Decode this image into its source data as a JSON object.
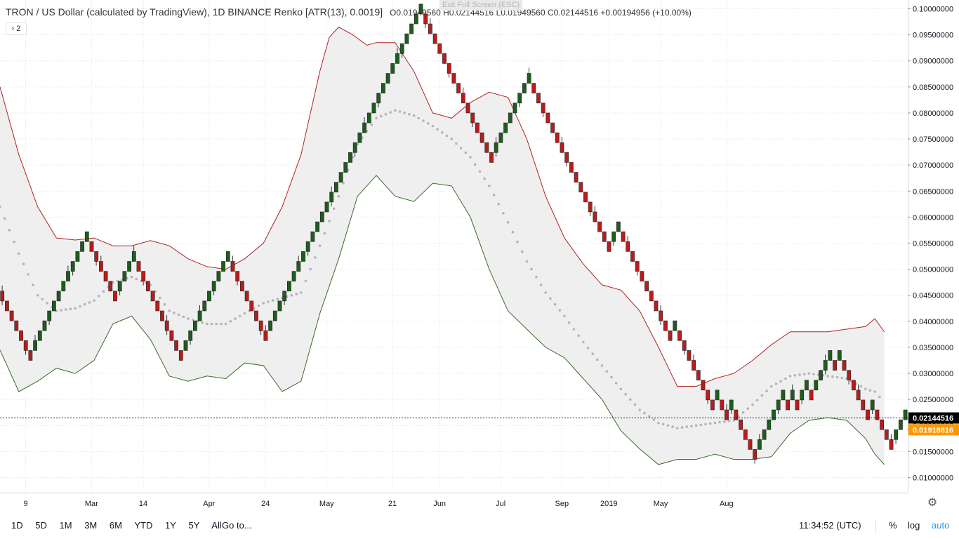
{
  "header": {
    "title": "TRON / US Dollar (calculated by TradingView)",
    "interval": "1D",
    "exchange": "BINANCE",
    "chart_style": "Renko [ATR(13), 0.0019]",
    "open_label": "O",
    "open": "0.01949560",
    "high_label": "H",
    "high": "0.02144516",
    "low_label": "L",
    "low": "0.01949560",
    "close_label": "C",
    "close": "0.02144516",
    "change": "+0.00194956 (+10.00%)"
  },
  "collapse_label": "› 2",
  "exit_fullscreen": "Exit Full Screen (ESC)",
  "colors": {
    "up_brick": "#1e5c1e",
    "down_brick": "#b71c1c",
    "upper_band": "#b22222",
    "lower_band": "#3a6b2a",
    "basis": "#b4b4bc",
    "band_fill": "#ececec",
    "last_price_bg": "#000000",
    "second_price_bg": "#ff9800"
  },
  "price_labels": {
    "last": "0.02144516",
    "second": "0.01918816"
  },
  "bottom_bar": {
    "ranges": [
      "1D",
      "5D",
      "1M",
      "3M",
      "6M",
      "YTD",
      "1Y",
      "5Y",
      "All"
    ],
    "goto": "Go to...",
    "clock": "11:34:52 (UTC)",
    "percent": "%",
    "log": "log",
    "auto": "auto"
  },
  "settings_icon": "gear-icon",
  "chart_data": {
    "type": "renko",
    "brick_size": 0.0019,
    "y_axis": {
      "min": 0.006,
      "max": 0.101,
      "ticks": [
        0.1,
        0.095,
        0.09,
        0.085,
        0.08,
        0.075,
        0.07,
        0.065,
        0.06,
        0.055,
        0.05,
        0.045,
        0.04,
        0.035,
        0.03,
        0.025,
        0.02,
        0.015,
        0.01
      ],
      "tick_labels": [
        "0.10000000",
        "0.09500000",
        "0.09000000",
        "0.08500000",
        "0.08000000",
        "0.07500000",
        "0.07000000",
        "0.06500000",
        "0.06000000",
        "0.05500000",
        "0.05000000",
        "0.04500000",
        "0.04000000",
        "0.03500000",
        "0.03000000",
        "0.02500000",
        "0.02000000",
        "0.01500000",
        "0.01000000"
      ]
    },
    "x_axis": {
      "tick_labels": [
        "9",
        "Mar",
        "14",
        "Apr",
        "24",
        "May",
        "21",
        "Jun",
        "Jul",
        "Sep",
        "2019",
        "May",
        "Aug"
      ],
      "tick_bricks": [
        5,
        19,
        30,
        44,
        56,
        69,
        83,
        93,
        106,
        119,
        129,
        140,
        154
      ]
    },
    "bricks_start": 0.0458,
    "brick_moves": [
      -1,
      -1,
      -1,
      -1,
      -1,
      -1,
      -1,
      1,
      1,
      1,
      1,
      1,
      1,
      1,
      1,
      1,
      1,
      1,
      1,
      -1,
      -1,
      -1,
      -1,
      -1,
      -1,
      1,
      1,
      1,
      1,
      -1,
      -1,
      -1,
      -1,
      -1,
      -1,
      -1,
      -1,
      -1,
      -1,
      1,
      1,
      1,
      1,
      1,
      1,
      1,
      1,
      1,
      1,
      -1,
      -1,
      -1,
      -1,
      -1,
      -1,
      -1,
      -1,
      1,
      1,
      1,
      1,
      1,
      1,
      1,
      1,
      1,
      1,
      1,
      1,
      1,
      1,
      1,
      1,
      1,
      1,
      1,
      1,
      1,
      1,
      1,
      1,
      1,
      1,
      1,
      1,
      1,
      1,
      1,
      1,
      1,
      -1,
      -1,
      -1,
      -1,
      -1,
      -1,
      -1,
      -1,
      -1,
      -1,
      -1,
      -1,
      -1,
      -1,
      -1,
      1,
      1,
      1,
      1,
      1,
      1,
      1,
      1,
      -1,
      -1,
      -1,
      -1,
      -1,
      -1,
      -1,
      -1,
      -1,
      -1,
      -1,
      -1,
      -1,
      -1,
      -1,
      -1,
      -1,
      1,
      1,
      -1,
      -1,
      -1,
      -1,
      -1,
      -1,
      -1,
      -1,
      -1,
      -1,
      -1,
      1,
      -1,
      -1,
      -1,
      -1,
      -1,
      -1,
      -1,
      -1,
      1,
      -1,
      -1,
      1,
      -1,
      -1,
      -1,
      -1,
      -1,
      1,
      1,
      1,
      1,
      1,
      1,
      -1,
      1,
      -1,
      1,
      1,
      -1,
      1,
      1,
      1,
      1,
      -1,
      1,
      -1,
      -1,
      -1,
      -1,
      -1,
      -1,
      1,
      -1,
      -1,
      -1,
      -1,
      1,
      1,
      1
    ],
    "upper_band": [
      [
        0,
        0.085
      ],
      [
        4,
        0.072
      ],
      [
        8,
        0.062
      ],
      [
        12,
        0.056
      ],
      [
        16,
        0.0556
      ],
      [
        20,
        0.056
      ],
      [
        24,
        0.0545
      ],
      [
        28,
        0.0545
      ],
      [
        32,
        0.0555
      ],
      [
        36,
        0.0545
      ],
      [
        40,
        0.052
      ],
      [
        44,
        0.0505
      ],
      [
        48,
        0.05
      ],
      [
        52,
        0.052
      ],
      [
        56,
        0.055
      ],
      [
        60,
        0.062
      ],
      [
        64,
        0.072
      ],
      [
        68,
        0.088
      ],
      [
        70,
        0.0945
      ],
      [
        72,
        0.0965
      ],
      [
        75,
        0.095
      ],
      [
        78,
        0.093
      ],
      [
        80,
        0.0935
      ],
      [
        84,
        0.0935
      ],
      [
        88,
        0.088
      ],
      [
        92,
        0.08
      ],
      [
        96,
        0.079
      ],
      [
        100,
        0.082
      ],
      [
        104,
        0.084
      ],
      [
        108,
        0.083
      ],
      [
        112,
        0.075
      ],
      [
        116,
        0.064
      ],
      [
        120,
        0.056
      ],
      [
        124,
        0.051
      ],
      [
        128,
        0.047
      ],
      [
        132,
        0.046
      ],
      [
        136,
        0.042
      ],
      [
        140,
        0.035
      ],
      [
        144,
        0.0275
      ],
      [
        148,
        0.0275
      ],
      [
        152,
        0.029
      ],
      [
        156,
        0.03
      ],
      [
        160,
        0.0325
      ],
      [
        164,
        0.0355
      ],
      [
        168,
        0.038
      ],
      [
        172,
        0.038
      ],
      [
        176,
        0.038
      ],
      [
        180,
        0.0385
      ],
      [
        184,
        0.039
      ],
      [
        186,
        0.0405
      ],
      [
        188,
        0.038
      ]
    ],
    "lower_band": [
      [
        0,
        0.0345
      ],
      [
        4,
        0.0265
      ],
      [
        8,
        0.0285
      ],
      [
        12,
        0.031
      ],
      [
        16,
        0.03
      ],
      [
        20,
        0.0325
      ],
      [
        24,
        0.0395
      ],
      [
        28,
        0.041
      ],
      [
        32,
        0.0365
      ],
      [
        36,
        0.0295
      ],
      [
        40,
        0.0285
      ],
      [
        44,
        0.0295
      ],
      [
        48,
        0.029
      ],
      [
        52,
        0.032
      ],
      [
        56,
        0.0315
      ],
      [
        60,
        0.0265
      ],
      [
        64,
        0.0285
      ],
      [
        68,
        0.0415
      ],
      [
        72,
        0.052
      ],
      [
        76,
        0.064
      ],
      [
        80,
        0.068
      ],
      [
        84,
        0.064
      ],
      [
        88,
        0.063
      ],
      [
        92,
        0.0665
      ],
      [
        96,
        0.066
      ],
      [
        100,
        0.06
      ],
      [
        104,
        0.05
      ],
      [
        108,
        0.042
      ],
      [
        112,
        0.0385
      ],
      [
        116,
        0.035
      ],
      [
        120,
        0.033
      ],
      [
        124,
        0.029
      ],
      [
        128,
        0.025
      ],
      [
        132,
        0.019
      ],
      [
        136,
        0.0155
      ],
      [
        140,
        0.0125
      ],
      [
        144,
        0.0135
      ],
      [
        148,
        0.0135
      ],
      [
        152,
        0.0145
      ],
      [
        156,
        0.0135
      ],
      [
        160,
        0.0135
      ],
      [
        164,
        0.014
      ],
      [
        168,
        0.0185
      ],
      [
        172,
        0.021
      ],
      [
        176,
        0.0215
      ],
      [
        180,
        0.021
      ],
      [
        184,
        0.0175
      ],
      [
        186,
        0.0145
      ],
      [
        188,
        0.0125
      ]
    ],
    "basis_line": [
      [
        0,
        0.062
      ],
      [
        4,
        0.053
      ],
      [
        8,
        0.045
      ],
      [
        12,
        0.042
      ],
      [
        16,
        0.0425
      ],
      [
        20,
        0.044
      ],
      [
        24,
        0.0475
      ],
      [
        28,
        0.0485
      ],
      [
        32,
        0.047
      ],
      [
        36,
        0.042
      ],
      [
        40,
        0.0405
      ],
      [
        44,
        0.0395
      ],
      [
        48,
        0.0395
      ],
      [
        52,
        0.0415
      ],
      [
        56,
        0.0435
      ],
      [
        60,
        0.0445
      ],
      [
        64,
        0.0455
      ],
      [
        68,
        0.0545
      ],
      [
        72,
        0.064
      ],
      [
        76,
        0.074
      ],
      [
        80,
        0.079
      ],
      [
        84,
        0.0805
      ],
      [
        88,
        0.0795
      ],
      [
        92,
        0.0775
      ],
      [
        96,
        0.075
      ],
      [
        100,
        0.0715
      ],
      [
        104,
        0.066
      ],
      [
        108,
        0.059
      ],
      [
        112,
        0.0515
      ],
      [
        116,
        0.0455
      ],
      [
        120,
        0.041
      ],
      [
        124,
        0.036
      ],
      [
        128,
        0.0315
      ],
      [
        132,
        0.027
      ],
      [
        136,
        0.023
      ],
      [
        140,
        0.0205
      ],
      [
        144,
        0.0195
      ],
      [
        148,
        0.02
      ],
      [
        152,
        0.0205
      ],
      [
        156,
        0.021
      ],
      [
        160,
        0.024
      ],
      [
        164,
        0.0275
      ],
      [
        168,
        0.0295
      ],
      [
        172,
        0.03
      ],
      [
        176,
        0.0295
      ],
      [
        180,
        0.029
      ],
      [
        184,
        0.027
      ],
      [
        186,
        0.0265
      ],
      [
        188,
        0.0245
      ]
    ]
  }
}
